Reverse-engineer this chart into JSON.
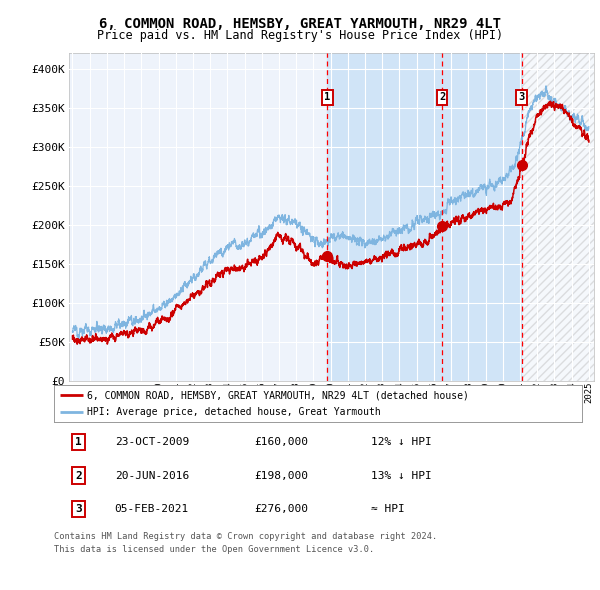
{
  "title": "6, COMMON ROAD, HEMSBY, GREAT YARMOUTH, NR29 4LT",
  "subtitle": "Price paid vs. HM Land Registry's House Price Index (HPI)",
  "title_fontsize": 10,
  "subtitle_fontsize": 8.5,
  "ylim": [
    0,
    420000
  ],
  "yticks": [
    0,
    50000,
    100000,
    150000,
    200000,
    250000,
    300000,
    350000,
    400000
  ],
  "ytick_labels": [
    "£0",
    "£50K",
    "£100K",
    "£150K",
    "£200K",
    "£250K",
    "£300K",
    "£350K",
    "£400K"
  ],
  "hpi_color": "#7fb5e0",
  "price_color": "#cc0000",
  "bg_color": "#eef3fb",
  "plot_bg_color": "#eef3fb",
  "shade_color": "#d0e4f7",
  "sale_dates_num": [
    2009.81,
    2016.47,
    2021.09
  ],
  "sale_prices": [
    160000,
    198000,
    276000
  ],
  "sale_labels": [
    "1",
    "2",
    "3"
  ],
  "shade_x_start": 2009.81,
  "shade_x_end": 2021.09,
  "legend_line1": "6, COMMON ROAD, HEMSBY, GREAT YARMOUTH, NR29 4LT (detached house)",
  "legend_line2": "HPI: Average price, detached house, Great Yarmouth",
  "table_data": [
    [
      "1",
      "23-OCT-2009",
      "£160,000",
      "12% ↓ HPI"
    ],
    [
      "2",
      "20-JUN-2016",
      "£198,000",
      "13% ↓ HPI"
    ],
    [
      "3",
      "05-FEB-2021",
      "£276,000",
      "≈ HPI"
    ]
  ],
  "footnote1": "Contains HM Land Registry data © Crown copyright and database right 2024.",
  "footnote2": "This data is licensed under the Open Government Licence v3.0.",
  "xmin": 1995,
  "xmax": 2025,
  "hpi_key_points": [
    [
      1995,
      63000
    ],
    [
      1996,
      65000
    ],
    [
      1997,
      68000
    ],
    [
      1998,
      72000
    ],
    [
      1999,
      80000
    ],
    [
      2000,
      92000
    ],
    [
      2001,
      108000
    ],
    [
      2002,
      130000
    ],
    [
      2003,
      155000
    ],
    [
      2004,
      172000
    ],
    [
      2005,
      178000
    ],
    [
      2006,
      188000
    ],
    [
      2007,
      210000
    ],
    [
      2008,
      200000
    ],
    [
      2009,
      180000
    ],
    [
      2009.5,
      175000
    ],
    [
      2010,
      182000
    ],
    [
      2010.5,
      185000
    ],
    [
      2011,
      182000
    ],
    [
      2012,
      178000
    ],
    [
      2013,
      182000
    ],
    [
      2014,
      192000
    ],
    [
      2015,
      202000
    ],
    [
      2016,
      212000
    ],
    [
      2016.5,
      218000
    ],
    [
      2017,
      228000
    ],
    [
      2018,
      238000
    ],
    [
      2019,
      248000
    ],
    [
      2020,
      255000
    ],
    [
      2020.5,
      268000
    ],
    [
      2021,
      300000
    ],
    [
      2021.5,
      340000
    ],
    [
      2022,
      365000
    ],
    [
      2022.5,
      370000
    ],
    [
      2023,
      358000
    ],
    [
      2023.5,
      348000
    ],
    [
      2024,
      340000
    ],
    [
      2024.5,
      332000
    ],
    [
      2025,
      325000
    ]
  ],
  "price_key_points": [
    [
      1995,
      52000
    ],
    [
      1996,
      53000
    ],
    [
      1997,
      55000
    ],
    [
      1998,
      58000
    ],
    [
      1999,
      64000
    ],
    [
      2000,
      74000
    ],
    [
      2001,
      88000
    ],
    [
      2002,
      108000
    ],
    [
      2003,
      128000
    ],
    [
      2004,
      142000
    ],
    [
      2005,
      148000
    ],
    [
      2006,
      158000
    ],
    [
      2007,
      185000
    ],
    [
      2008,
      175000
    ],
    [
      2009,
      148000
    ],
    [
      2009.81,
      160000
    ],
    [
      2010,
      155000
    ],
    [
      2010.5,
      150000
    ],
    [
      2011,
      148000
    ],
    [
      2011.5,
      152000
    ],
    [
      2012,
      150000
    ],
    [
      2012.5,
      155000
    ],
    [
      2013,
      158000
    ],
    [
      2013.5,
      163000
    ],
    [
      2014,
      168000
    ],
    [
      2015,
      175000
    ],
    [
      2015.5,
      180000
    ],
    [
      2016,
      188000
    ],
    [
      2016.47,
      198000
    ],
    [
      2017,
      200000
    ],
    [
      2017.5,
      205000
    ],
    [
      2018,
      210000
    ],
    [
      2018.5,
      215000
    ],
    [
      2019,
      220000
    ],
    [
      2019.5,
      222000
    ],
    [
      2020,
      225000
    ],
    [
      2020.5,
      232000
    ],
    [
      2021.09,
      276000
    ],
    [
      2021.5,
      310000
    ],
    [
      2022,
      338000
    ],
    [
      2022.5,
      352000
    ],
    [
      2023,
      355000
    ],
    [
      2023.5,
      348000
    ],
    [
      2024,
      332000
    ],
    [
      2024.5,
      320000
    ],
    [
      2025,
      310000
    ]
  ]
}
